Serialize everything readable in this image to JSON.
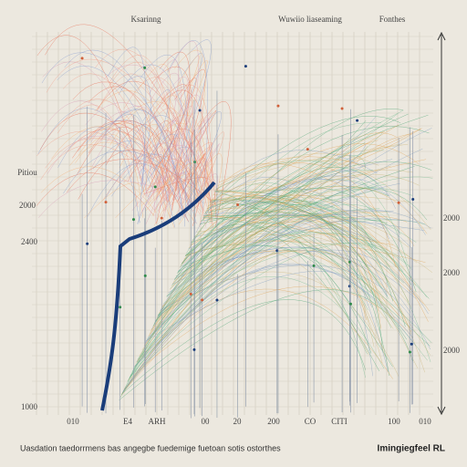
{
  "header": {
    "labels": [
      "Ksarinng",
      "Wuwiio liaseaming",
      "Fonthes"
    ]
  },
  "left_axis": {
    "labels": [
      "Pitiou",
      "2000",
      "2400",
      "1000"
    ]
  },
  "bottom_axis": {
    "labels": [
      "010",
      "E4",
      "ARH",
      "00",
      "20",
      "200",
      "CO",
      "CITI",
      "100",
      "010"
    ]
  },
  "right_axis": {
    "labels": [
      "2000",
      "2000",
      "2000"
    ]
  },
  "footer": {
    "caption": "Uasdation taedorrmens bas angegbe fuedemige fuetoan sotis ostorthes",
    "brand": "Imingiegfeel RL"
  }
}
